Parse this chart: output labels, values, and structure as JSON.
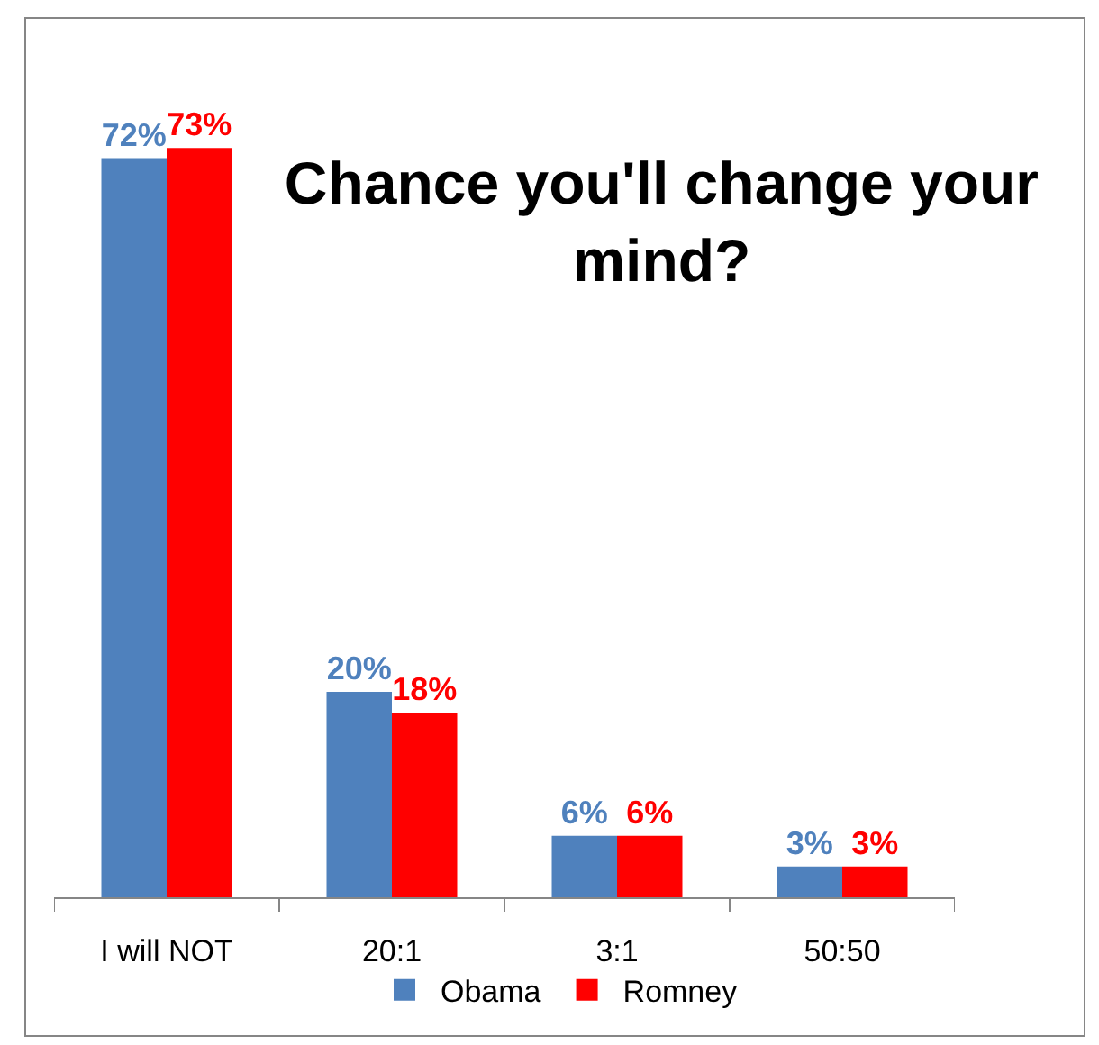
{
  "chart_data": {
    "type": "bar",
    "title": "Chance you'll change your mind?",
    "categories": [
      "I will NOT",
      "20:1",
      "3:1",
      "50:50"
    ],
    "series": [
      {
        "name": "Obama",
        "color": "#4f81bd",
        "values": [
          72,
          20,
          6,
          3
        ],
        "value_labels": [
          "72%",
          "20%",
          "6%",
          "3%"
        ]
      },
      {
        "name": "Romney",
        "color": "#ff0000",
        "values": [
          73,
          18,
          6,
          3
        ],
        "value_labels": [
          "73%",
          "18%",
          "6%",
          "3%"
        ]
      }
    ],
    "legend": "bottom",
    "tick_labels": "x"
  }
}
